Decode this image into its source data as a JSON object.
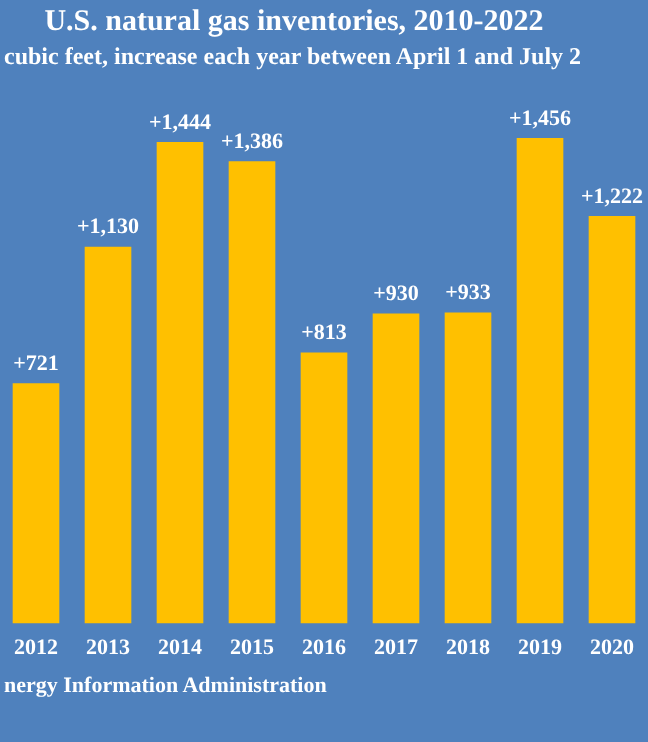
{
  "chart_data": {
    "type": "bar",
    "title": "U.S. natural gas inventories, 2010-2022",
    "subtitle": "cubic feet, increase each year between April 1 and July 2",
    "annotations": [
      "nergy Information Administration"
    ],
    "categories": [
      "2012",
      "2013",
      "2014",
      "2015",
      "2016",
      "2017",
      "2018",
      "2019",
      "2020"
    ],
    "values": [
      721,
      1130,
      1444,
      1386,
      813,
      930,
      933,
      1456,
      1222
    ],
    "value_labels": [
      "+721",
      "+1,130",
      "+1,444",
      "+1,386",
      "+813",
      "+930",
      "+933",
      "+1,456",
      "+1,222"
    ],
    "color": "#ffc000",
    "grid": false,
    "legend": false
  }
}
